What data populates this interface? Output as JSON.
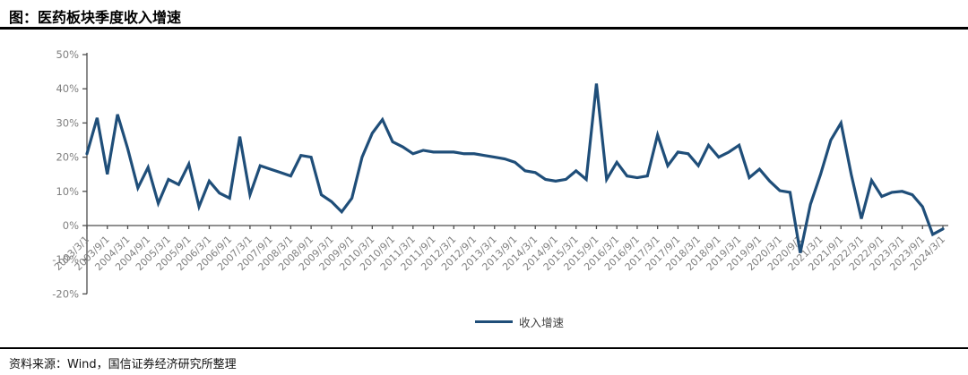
{
  "header": {
    "title": "图：医药板块季度收入增速"
  },
  "legend": {
    "label": "收入增速"
  },
  "source": {
    "text": "资料来源：Wind，国信证券经济研究所整理"
  },
  "colors": {
    "line": "#1f4e79",
    "axis": "#4d4d4d",
    "tick_label": "#808080",
    "title_text": "#000000",
    "rule": "#000000",
    "legend_text": "#404040",
    "source_text": "#111111",
    "background": "#ffffff"
  },
  "chart_data": {
    "type": "line",
    "title": "图：医药板块季度收入增速",
    "xlabel": "",
    "ylabel": "",
    "y_unit": "%",
    "ylim": [
      -20,
      50
    ],
    "y_ticks": [
      50,
      40,
      30,
      20,
      10,
      0,
      -10,
      -20
    ],
    "x_tick_step": 2,
    "grid": false,
    "legend_position": "bottom-center",
    "x": [
      "2003/3/1",
      "2003/6/1",
      "2003/9/1",
      "2003/12/1",
      "2004/3/1",
      "2004/6/1",
      "2004/9/1",
      "2004/12/1",
      "2005/3/1",
      "2005/6/1",
      "2005/9/1",
      "2005/12/1",
      "2006/3/1",
      "2006/6/1",
      "2006/9/1",
      "2006/12/1",
      "2007/3/1",
      "2007/6/1",
      "2007/9/1",
      "2007/12/1",
      "2008/3/1",
      "2008/6/1",
      "2008/9/1",
      "2008/12/1",
      "2009/3/1",
      "2009/6/1",
      "2009/9/1",
      "2009/12/1",
      "2010/3/1",
      "2010/6/1",
      "2010/9/1",
      "2010/12/1",
      "2011/3/1",
      "2011/6/1",
      "2011/9/1",
      "2011/12/1",
      "2012/3/1",
      "2012/6/1",
      "2012/9/1",
      "2012/12/1",
      "2013/3/1",
      "2013/6/1",
      "2013/9/1",
      "2013/12/1",
      "2014/3/1",
      "2014/6/1",
      "2014/9/1",
      "2014/12/1",
      "2015/3/1",
      "2015/6/1",
      "2015/9/1",
      "2015/12/1",
      "2016/3/1",
      "2016/6/1",
      "2016/9/1",
      "2016/12/1",
      "2017/3/1",
      "2017/6/1",
      "2017/9/1",
      "2017/12/1",
      "2018/3/1",
      "2018/6/1",
      "2018/9/1",
      "2018/12/1",
      "2019/3/1",
      "2019/6/1",
      "2019/9/1",
      "2019/12/1",
      "2020/3/1",
      "2020/6/1",
      "2020/9/1",
      "2020/12/1",
      "2021/3/1",
      "2021/6/1",
      "2021/9/1",
      "2021/12/1",
      "2022/3/1",
      "2022/6/1",
      "2022/9/1",
      "2022/12/1",
      "2023/3/1",
      "2023/6/1",
      "2023/9/1",
      "2023/12/1",
      "2024/3/1"
    ],
    "series": [
      {
        "name": "收入增速",
        "values": [
          21,
          31.5,
          15,
          32.5,
          22.5,
          11,
          17,
          6.5,
          13.5,
          12,
          18,
          5.5,
          13,
          9.5,
          8,
          26,
          9,
          17.5,
          16.5,
          15.5,
          14.5,
          20.5,
          20,
          9,
          7,
          4,
          8,
          20,
          27,
          31,
          24.5,
          23,
          21,
          22,
          21.5,
          21.5,
          21.5,
          21,
          21,
          20.5,
          20,
          19.5,
          18.5,
          16,
          15.5,
          13.5,
          13,
          13.5,
          16,
          13.5,
          41.5,
          13.5,
          18.5,
          14.5,
          14,
          14.5,
          26.5,
          17.5,
          21.5,
          21,
          17.5,
          23.5,
          20,
          21.5,
          23.5,
          14,
          16.5,
          13,
          10.2,
          9.7,
          -8,
          6.2,
          15,
          25,
          30,
          15,
          2,
          13.2,
          8.5,
          9.7,
          10,
          9,
          5.5,
          -2.6,
          -1
        ]
      }
    ]
  }
}
